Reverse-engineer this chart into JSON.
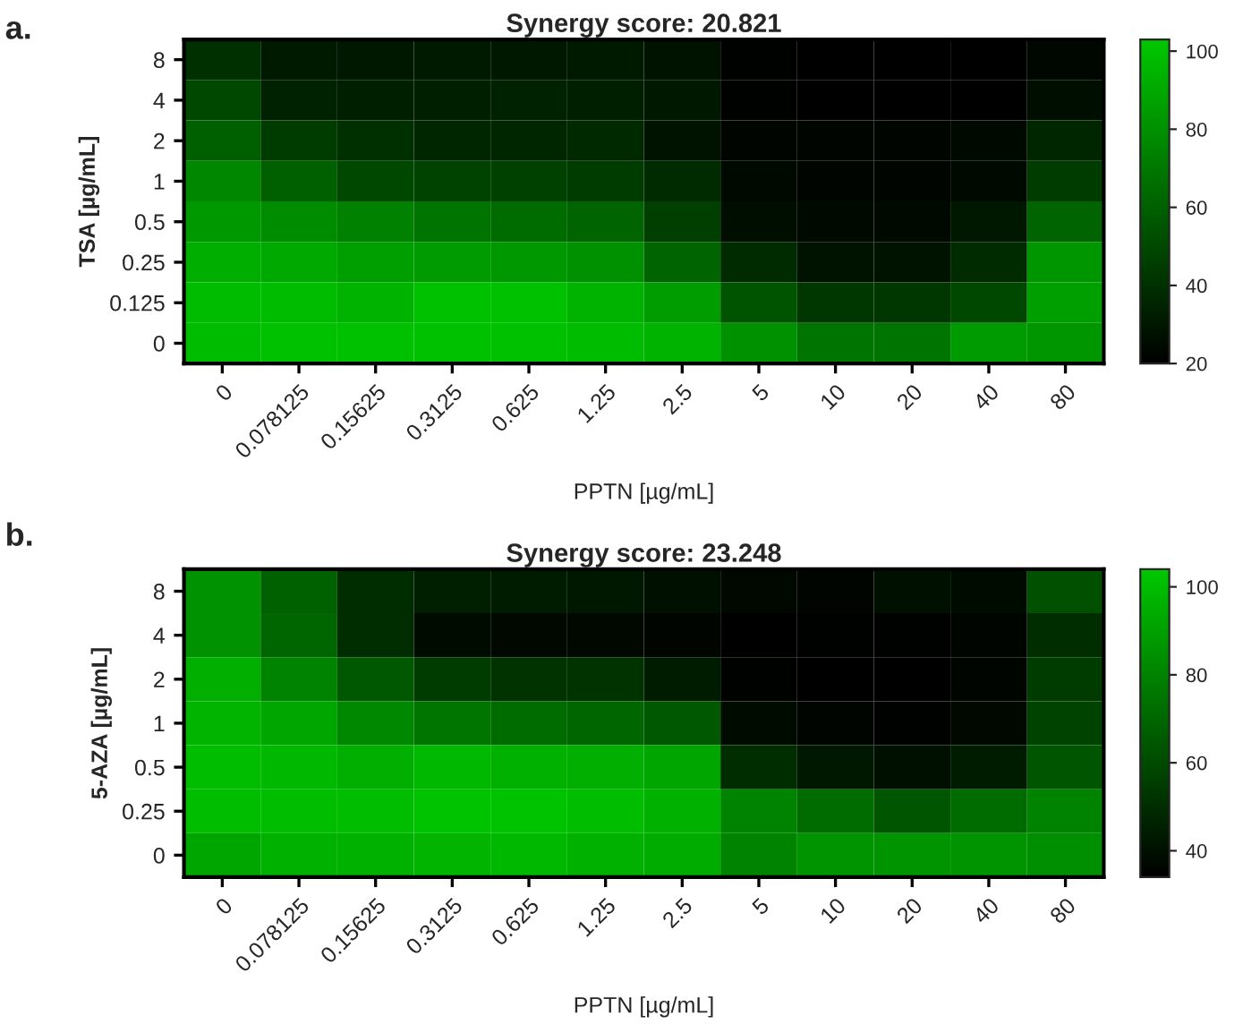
{
  "chart_data": [
    {
      "type": "heatmap",
      "title": "Synergy score: 20.821",
      "xlabel": "PPTN [µg/mL]",
      "ylabel": "TSA [µg/mL]",
      "annotations": [
        "a."
      ],
      "categories": [
        "0",
        "0.078125",
        "0.15625",
        "0.3125",
        "0.625",
        "1.25",
        "2.5",
        "5",
        "10",
        "20",
        "40",
        "80"
      ],
      "y_categories": [
        "8",
        "4",
        "2",
        "1",
        "0.5",
        "0.25",
        "0.125",
        "0"
      ],
      "cells": [
        [
          40,
          31,
          30,
          31,
          30,
          31,
          28,
          21,
          20,
          20,
          20,
          23
        ],
        [
          50,
          34,
          33,
          33,
          34,
          33,
          30,
          21,
          20,
          20,
          20,
          26
        ],
        [
          60,
          45,
          40,
          36,
          36,
          37,
          28,
          22,
          22,
          22,
          24,
          36
        ],
        [
          76,
          60,
          50,
          48,
          47,
          45,
          38,
          24,
          22,
          22,
          24,
          45
        ],
        [
          83,
          78,
          74,
          68,
          65,
          62,
          46,
          26,
          24,
          24,
          30,
          62
        ],
        [
          92,
          90,
          86,
          84,
          83,
          80,
          62,
          38,
          28,
          28,
          38,
          82
        ],
        [
          98,
          98,
          94,
          100,
          100,
          94,
          85,
          55,
          43,
          43,
          50,
          86
        ],
        [
          98,
          100,
          100,
          100,
          100,
          98,
          94,
          80,
          68,
          68,
          84,
          82
        ]
      ],
      "clim": [
        20,
        103
      ],
      "cticks": [
        20,
        40,
        60,
        80,
        100
      ],
      "grid": false
    },
    {
      "type": "heatmap",
      "title": "Synergy score: 23.248",
      "xlabel": "PPTN [µg/mL]",
      "ylabel": "5-AZA [µg/mL]",
      "annotations": [
        "b."
      ],
      "categories": [
        "0",
        "0.078125",
        "0.15625",
        "0.3125",
        "0.625",
        "1.25",
        "2.5",
        "5",
        "10",
        "20",
        "40",
        "80"
      ],
      "y_categories": [
        "8",
        "4",
        "2",
        "1",
        "0.5",
        "0.25",
        "0"
      ],
      "cells": [
        [
          85,
          68,
          50,
          45,
          44,
          42,
          40,
          37,
          36,
          40,
          38,
          62
        ],
        [
          85,
          70,
          50,
          38,
          37,
          37,
          36,
          34,
          35,
          35,
          36,
          50
        ],
        [
          95,
          80,
          65,
          55,
          52,
          52,
          44,
          35,
          33,
          33,
          36,
          55
        ],
        [
          97,
          92,
          82,
          75,
          72,
          70,
          65,
          38,
          36,
          35,
          37,
          57
        ],
        [
          100,
          98,
          95,
          98,
          96,
          95,
          92,
          50,
          42,
          40,
          44,
          64
        ],
        [
          100,
          100,
          100,
          102,
          102,
          100,
          96,
          80,
          72,
          64,
          72,
          80
        ],
        [
          92,
          96,
          96,
          97,
          98,
          96,
          94,
          80,
          86,
          86,
          86,
          84
        ]
      ],
      "clim": [
        34,
        104
      ],
      "cticks": [
        40,
        60,
        80,
        100
      ],
      "grid": false
    }
  ]
}
